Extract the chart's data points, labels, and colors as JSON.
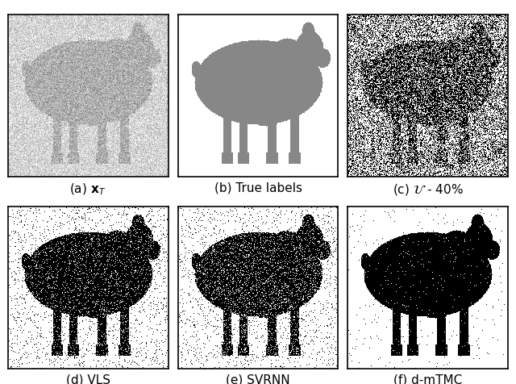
{
  "title": "",
  "captions": [
    "(a) $\\mathbf{x}_T$",
    "(b) True labels",
    "(c) $\\mathcal{U}$ - 40%",
    "(d) VLS",
    "(e) SVRNN",
    "(f) d-mTMC"
  ],
  "caption_fontsize": 11,
  "fig_width": 6.4,
  "fig_height": 4.77,
  "background_color": "#ffffff",
  "cow_gray": 0.53,
  "seed": 42,
  "img_size": 300
}
